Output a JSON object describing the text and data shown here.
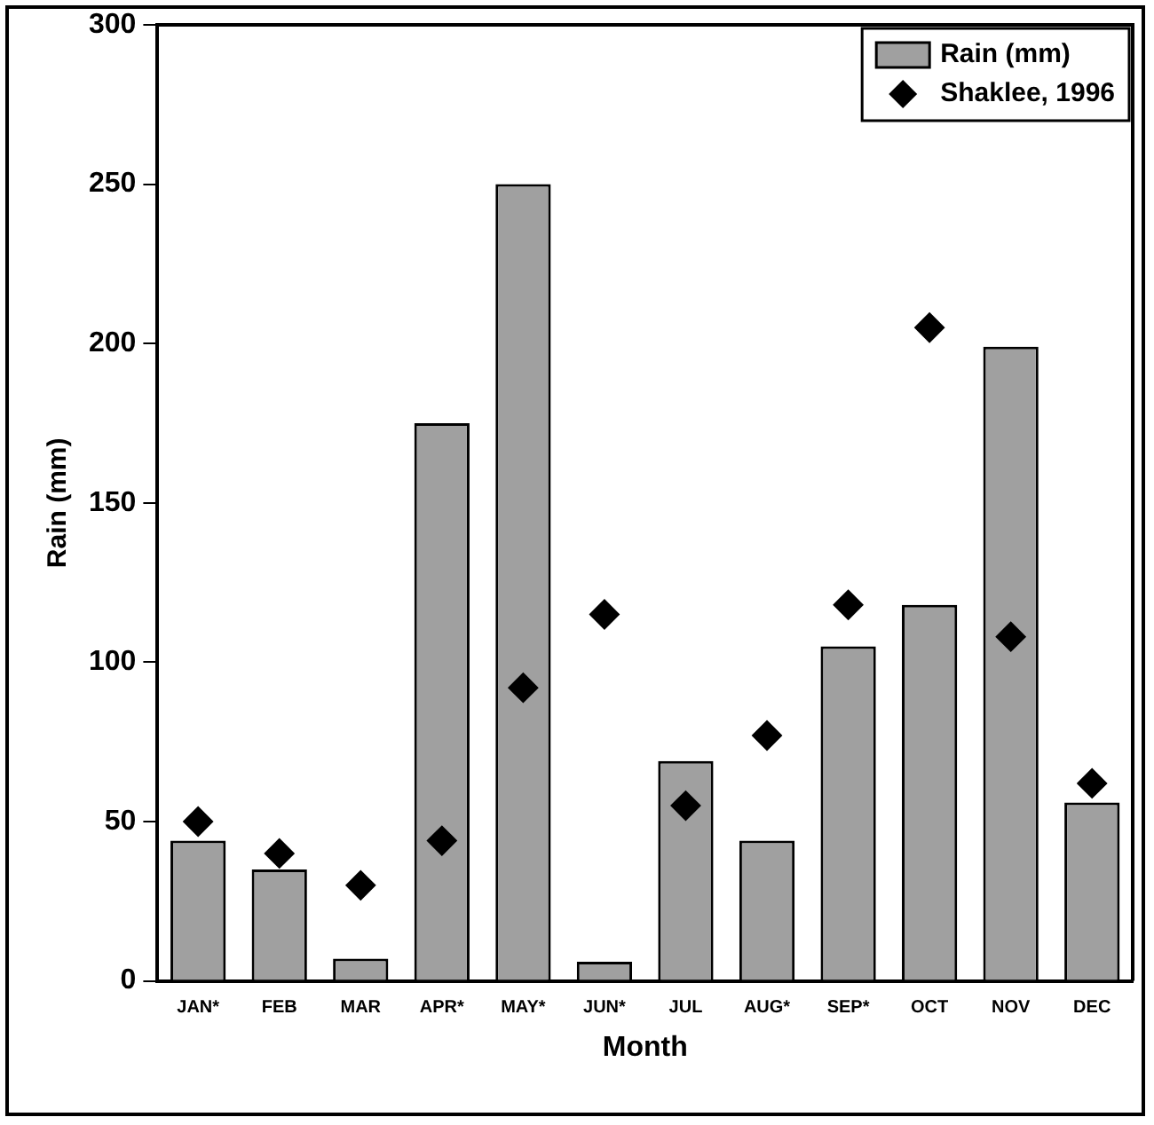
{
  "chart_data": {
    "type": "bar",
    "xlabel": "Month",
    "ylabel": "Rain (mm)",
    "categories": [
      "JAN*",
      "FEB",
      "MAR",
      "APR*",
      "MAY*",
      "JUN*",
      "JUL",
      "AUG*",
      "SEP*",
      "OCT",
      "NOV",
      "DEC"
    ],
    "series": [
      {
        "name": "Rain (mm)",
        "color": "#a0a0a0",
        "values": [
          44,
          35,
          7,
          175,
          250,
          6,
          69,
          44,
          105,
          118,
          199,
          56
        ]
      },
      {
        "name": "Shaklee, 1996",
        "type": "scatter",
        "color": "#000000",
        "values": [
          50,
          40,
          30,
          44,
          92,
          115,
          55,
          77,
          118,
          205,
          108,
          62
        ]
      }
    ],
    "ylim": [
      0,
      300
    ],
    "yticks": [
      0,
      50,
      100,
      150,
      200,
      250,
      300
    ],
    "grid": false,
    "legend": "top right",
    "marker": "diamond"
  }
}
